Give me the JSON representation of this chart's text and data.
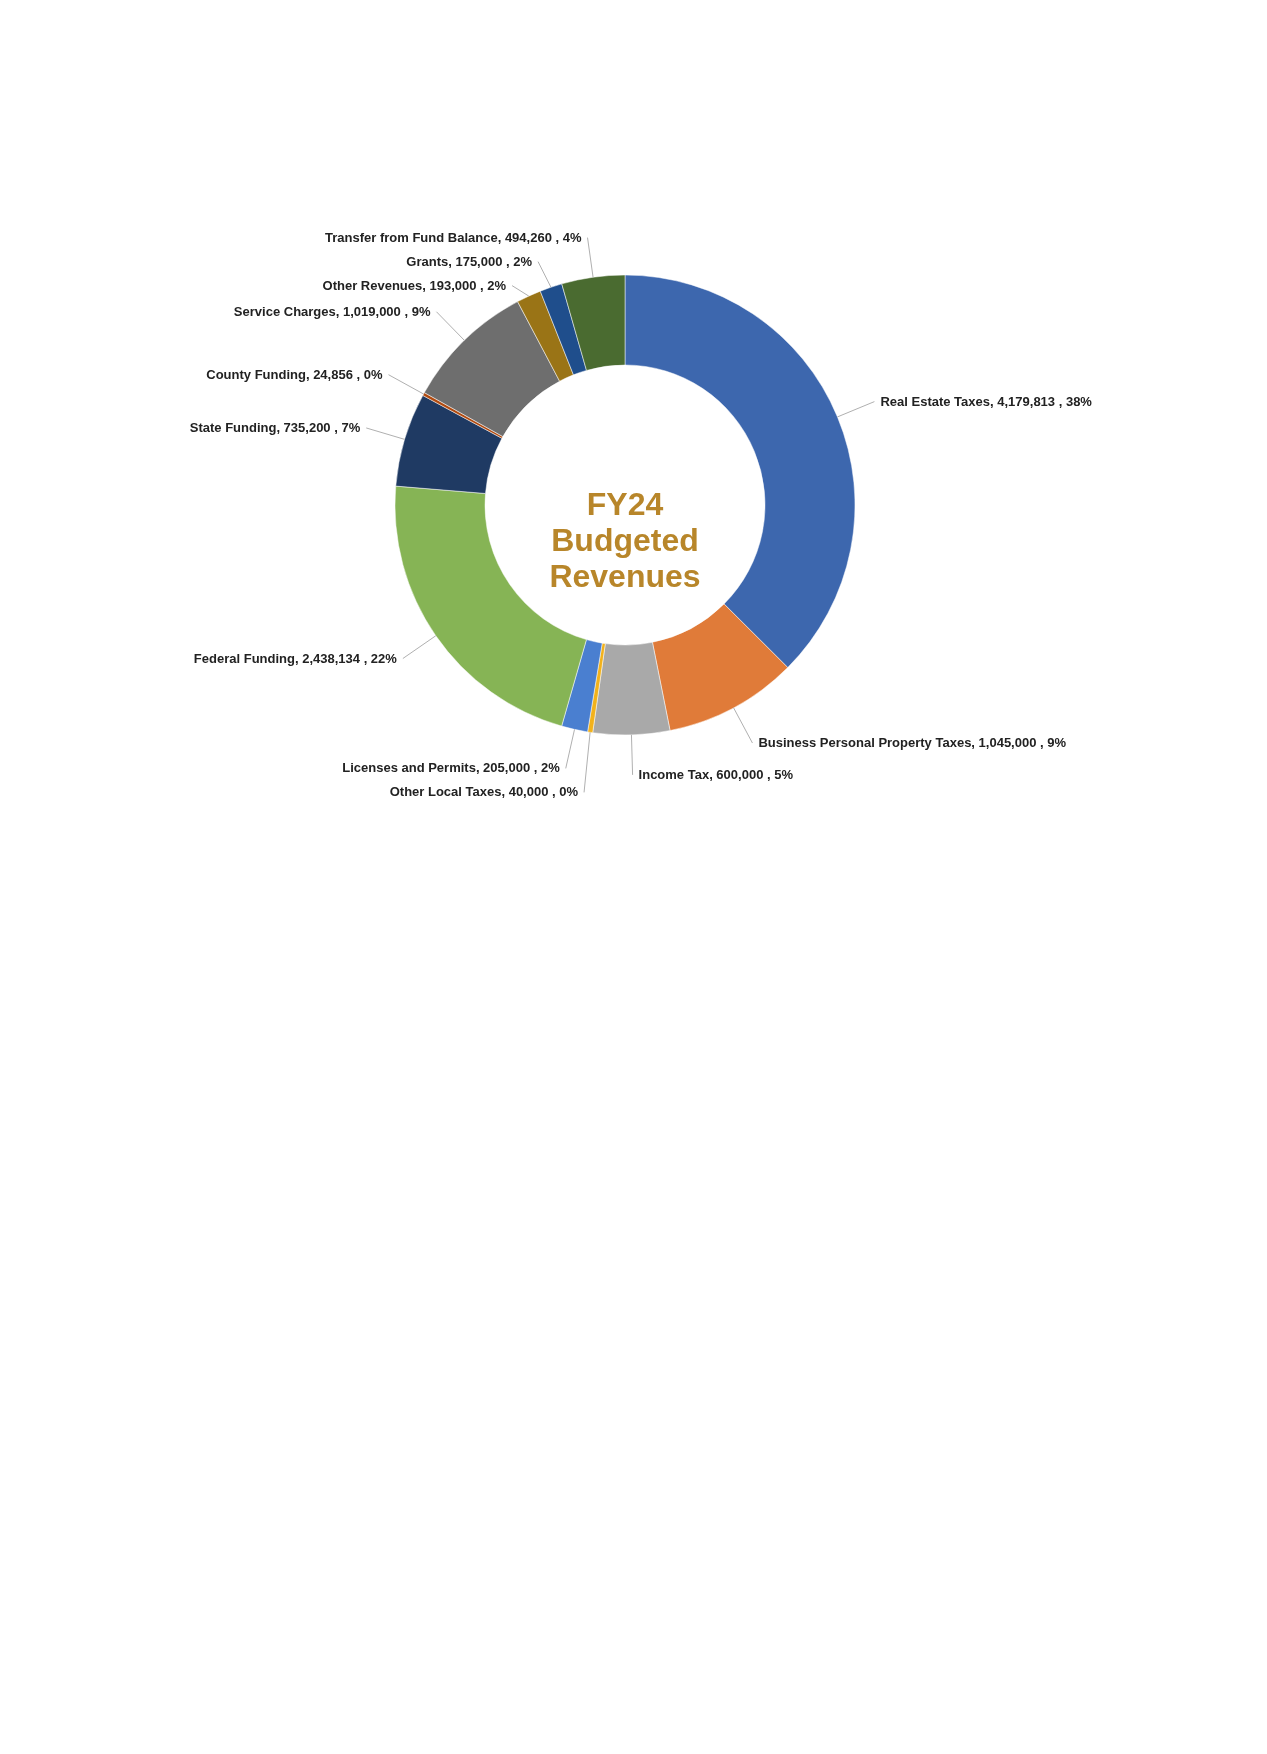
{
  "chart_data": {
    "type": "donut",
    "title": "FY24 Budgeted Revenues",
    "categories": [
      "Real Estate Taxes",
      "Business Personal Property Taxes",
      "Income Tax",
      "Other Local Taxes",
      "Licenses and Permits",
      "Federal Funding",
      "State Funding",
      "County Funding",
      "Service Charges",
      "Other Revenues",
      "Grants",
      "Transfer from Fund Balance"
    ],
    "values": [
      4179813,
      1045000,
      600000,
      40000,
      205000,
      2438134,
      735200,
      24856,
      1019000,
      193000,
      175000,
      494260
    ],
    "value_labels": [
      "4,179,813 , 38%",
      "1,045,000 , 9%",
      "600,000 , 5%",
      "40,000 , 0%",
      "205,000 , 2%",
      "2,438,134 , 22%",
      "735,200 , 7%",
      "24,856 , 0%",
      "1,019,000 , 9%",
      "193,000 , 2%",
      "175,000 , 2%",
      "494,260 , 4%"
    ],
    "colors": [
      "#3d67ae",
      "#e07b39",
      "#a9a9a9",
      "#f2b21c",
      "#4a7fd0",
      "#86b455",
      "#1f3a63",
      "#b04a10",
      "#6e6e6e",
      "#9a7416",
      "#1f4e8c",
      "#4a6b30"
    ]
  }
}
